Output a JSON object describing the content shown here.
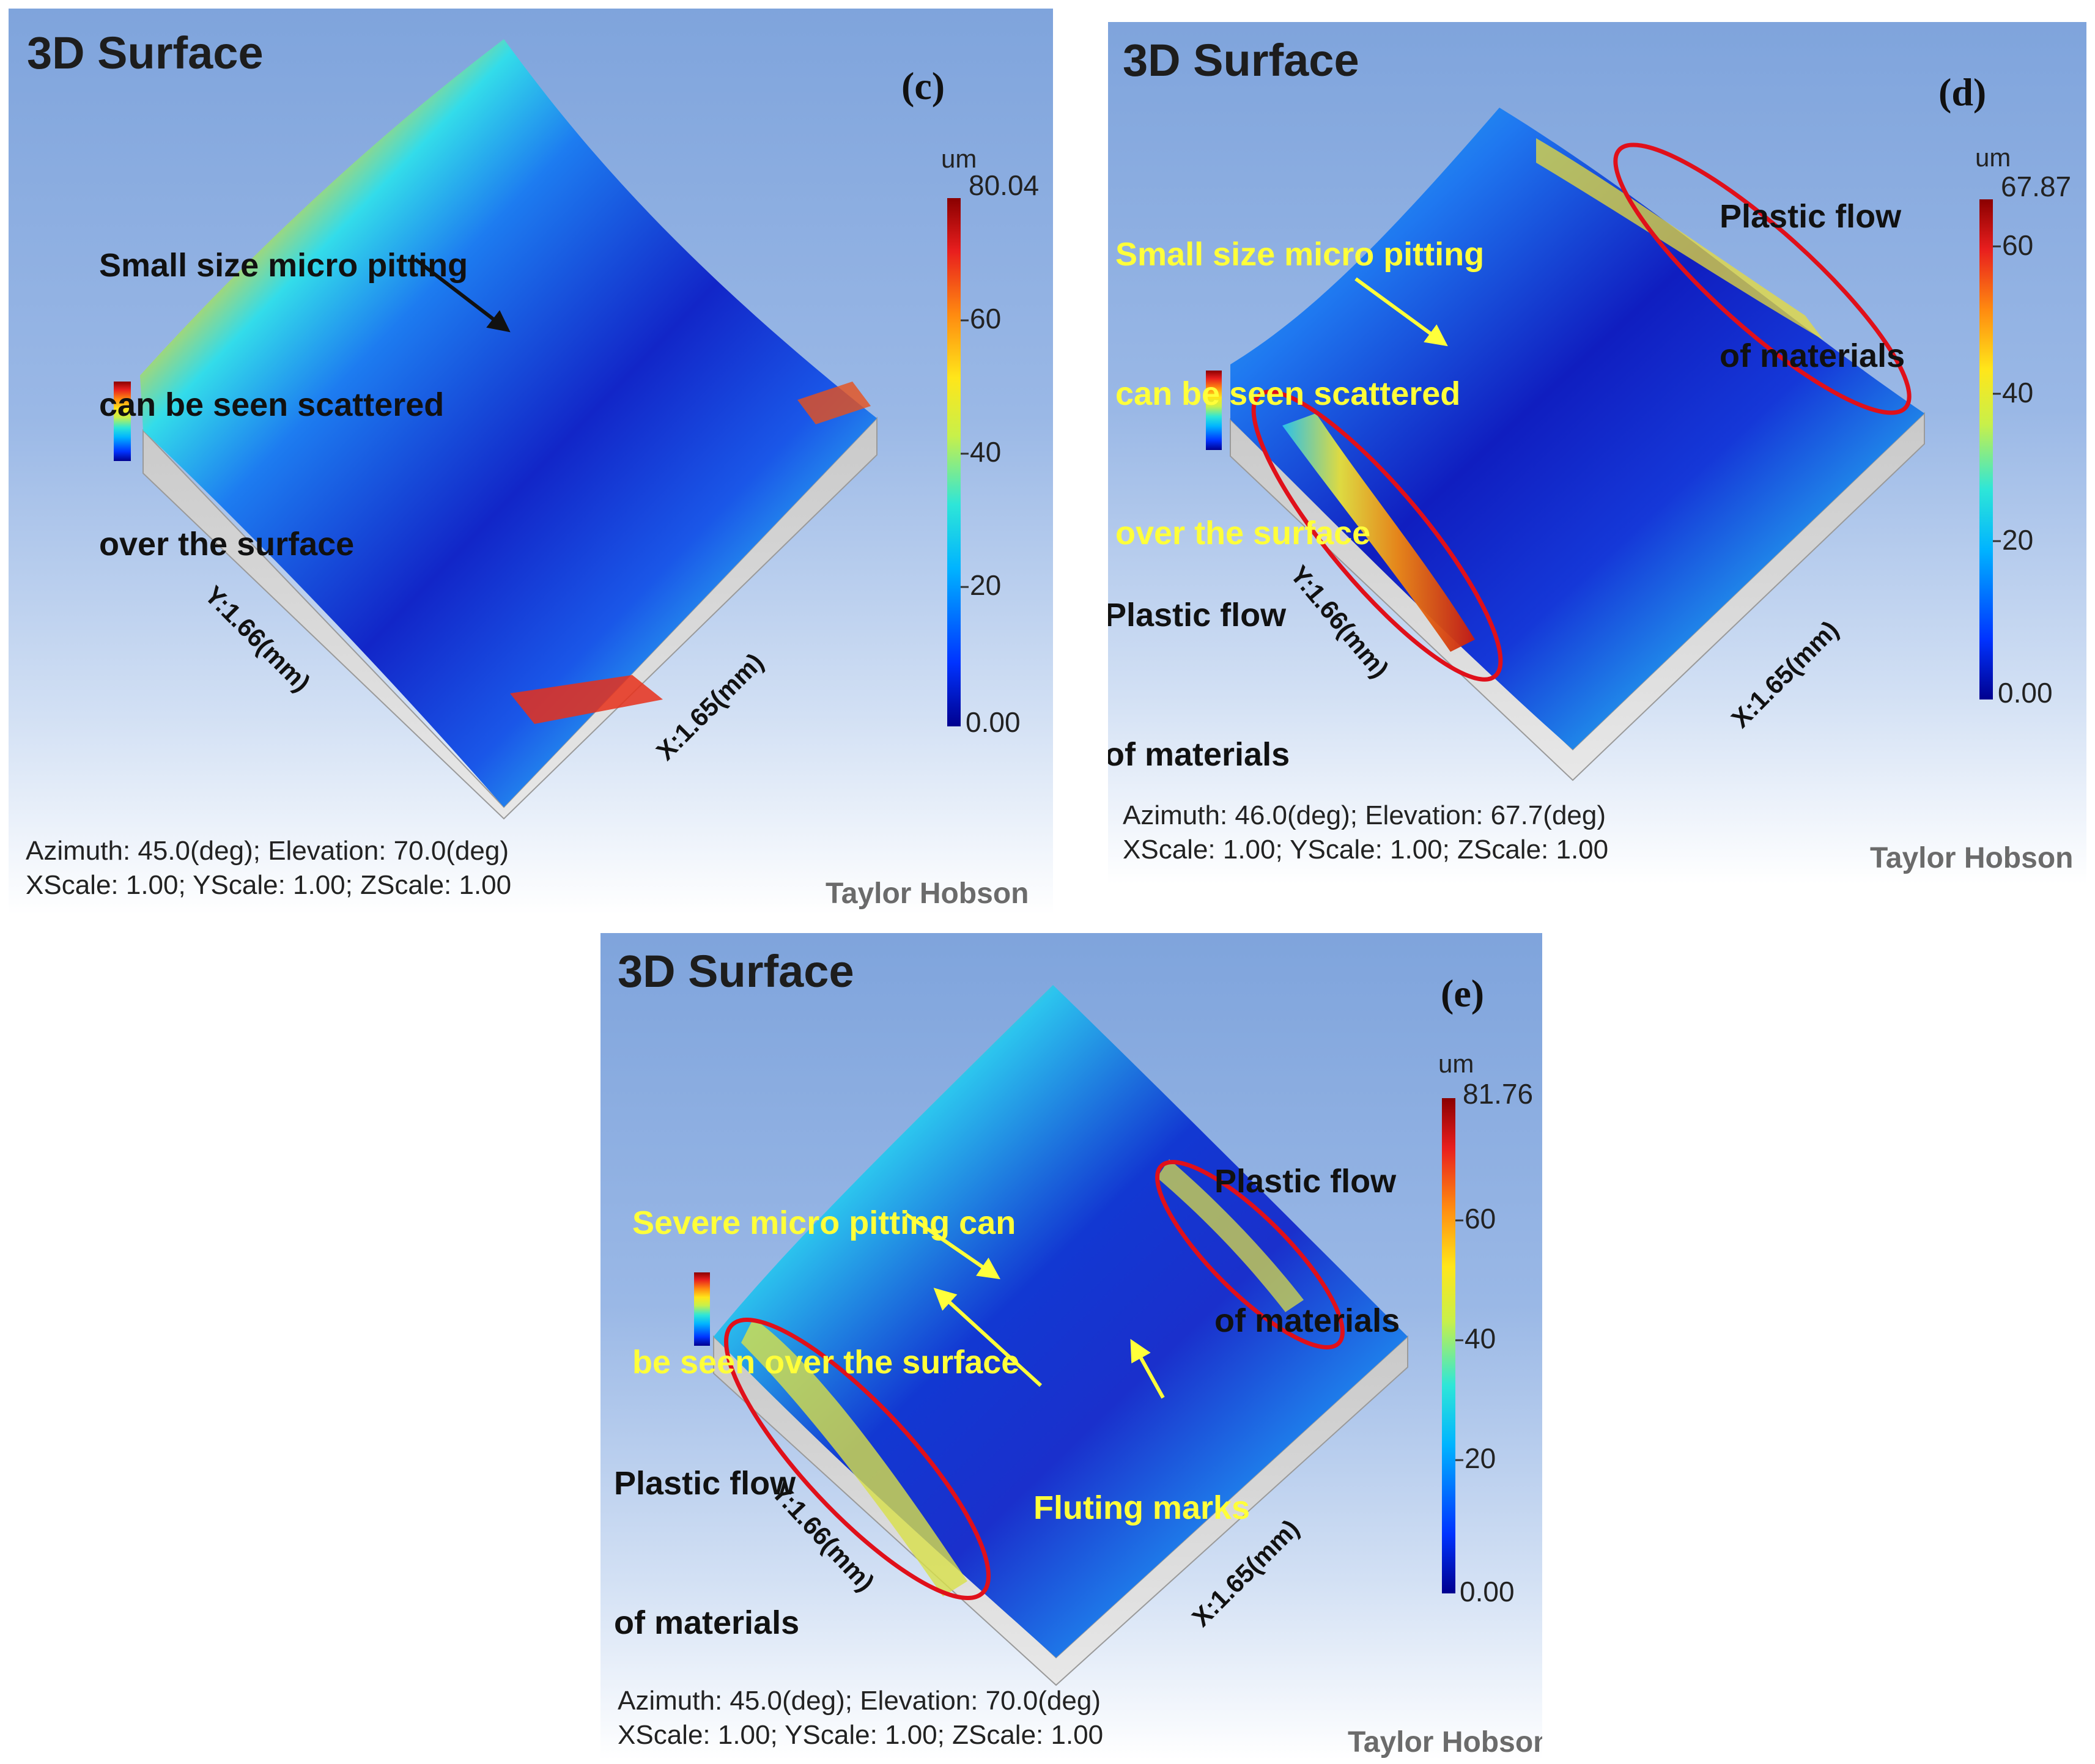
{
  "figure": {
    "panels": [
      {
        "id": "c",
        "title": "3D Surface",
        "label": "(c)",
        "unit": "um",
        "scale_max": "80.04",
        "ticks": [
          "60",
          "40",
          "20",
          "0.00"
        ],
        "x_axis": "X:1.65(mm)",
        "y_axis": "Y:1.66(mm)",
        "info_line1": "Azimuth: 45.0(deg); Elevation: 70.0(deg)",
        "info_line2": "XScale: 1.00; YScale: 1.00; ZScale: 1.00",
        "brand": "Taylor Hobson",
        "annotations": [
          {
            "lines": [
              "Small size micro pitting",
              "can be seen scattered",
              "over the surface"
            ],
            "color": "black"
          }
        ]
      },
      {
        "id": "d",
        "title": "3D Surface",
        "label": "(d)",
        "unit": "um",
        "scale_max": "67.87",
        "ticks": [
          "60",
          "40",
          "20",
          "0.00"
        ],
        "x_axis": "X:1.65(mm)",
        "y_axis": "Y:1.66(mm)",
        "info_line1": "Azimuth: 46.0(deg); Elevation: 67.7(deg)",
        "info_line2": "XScale: 1.00; YScale: 1.00; ZScale: 1.00",
        "brand": "Taylor Hobson",
        "annotations": [
          {
            "lines": [
              "Small size micro pitting",
              "can be seen scattered",
              "over the surface"
            ],
            "color": "yellow"
          },
          {
            "lines": [
              "Plastic flow",
              "of materials"
            ],
            "color": "black"
          },
          {
            "lines": [
              "Plastic flow",
              "of materials"
            ],
            "color": "black"
          }
        ]
      },
      {
        "id": "e",
        "title": "3D Surface",
        "label": "(e)",
        "unit": "um",
        "scale_max": "81.76",
        "ticks": [
          "60",
          "40",
          "20",
          "0.00"
        ],
        "x_axis": "X:1.65(mm)",
        "y_axis": "Y:1.66(mm)",
        "info_line1": "Azimuth: 45.0(deg); Elevation: 70.0(deg)",
        "info_line2": "XScale: 1.00; YScale: 1.00; ZScale: 1.00",
        "brand": "Taylor Hobson",
        "annotations": [
          {
            "lines": [
              "Plastic flow",
              "of materials"
            ],
            "color": "black"
          },
          {
            "lines": [
              "Severe micro pitting can",
              "be seen over the surface"
            ],
            "color": "yellow"
          },
          {
            "lines": [
              "Fluting marks"
            ],
            "color": "yellow"
          },
          {
            "lines": [
              "Plastic flow",
              "of materials"
            ],
            "color": "black"
          }
        ]
      }
    ],
    "colors": {
      "highlight_ellipse": "#e0101a",
      "yellow_text": "#ffff3a",
      "colormap": [
        "#00008f",
        "#0033ff",
        "#00b4ff",
        "#2ee6d8",
        "#c8f04a",
        "#ffe61a",
        "#ff8a10",
        "#e81e1e",
        "#8a0000"
      ]
    }
  }
}
